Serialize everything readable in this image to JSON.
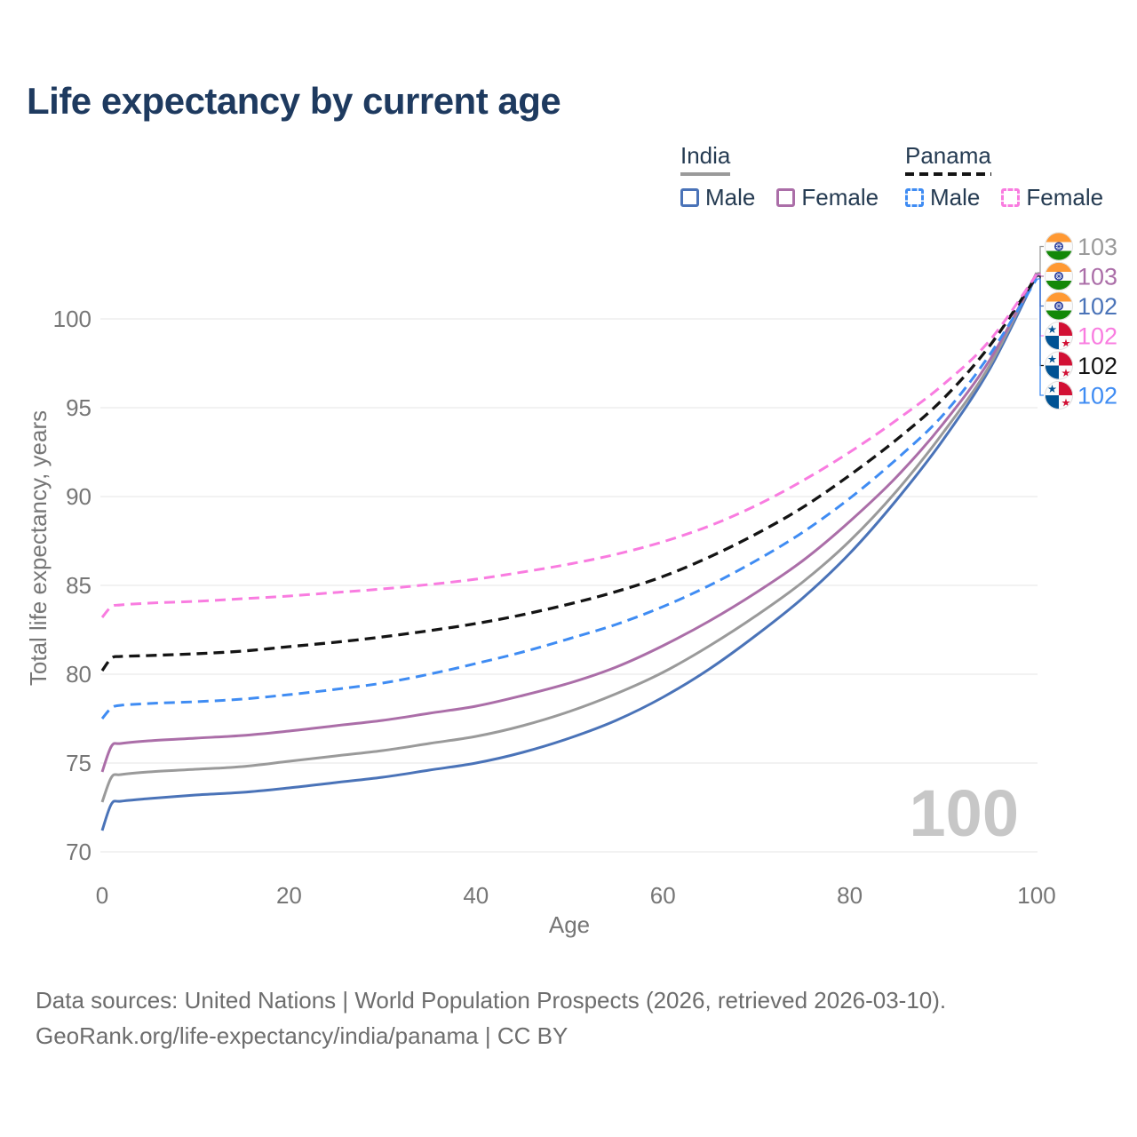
{
  "title": "Life expectancy by current age",
  "watermark": "100",
  "colors": {
    "title": "#1e3a5f",
    "legend_text": "#253b52",
    "axis": "#767676",
    "grid": "#eaeaea",
    "watermark": "#c7c7c7",
    "footer": "#6d6d6d",
    "india_male": "#4a73b8",
    "india_female": "#ab6ea8",
    "india_total": "#9a9a9a",
    "panama_male": "#3f8cf3",
    "panama_female": "#f97ce0",
    "panama_total": "#141414"
  },
  "legend": {
    "india": {
      "label": "India",
      "items": [
        {
          "label": "Male"
        },
        {
          "label": "Female"
        }
      ]
    },
    "panama": {
      "label": "Panama",
      "items": [
        {
          "label": "Male"
        },
        {
          "label": "Female"
        }
      ]
    }
  },
  "chart_data": {
    "type": "line",
    "title": "Life expectancy by current age",
    "xlabel": "Age",
    "ylabel": "Total life expectancy, years",
    "xlim": [
      0,
      100
    ],
    "ylim": [
      70,
      103
    ],
    "xticks": [
      0,
      20,
      40,
      60,
      80,
      100
    ],
    "yticks": [
      70,
      75,
      80,
      85,
      90,
      95,
      100
    ],
    "grid": true,
    "legend_position": "top-right",
    "x": [
      0,
      1,
      2,
      5,
      10,
      15,
      20,
      25,
      30,
      35,
      40,
      45,
      50,
      55,
      60,
      65,
      70,
      75,
      80,
      85,
      90,
      95,
      100
    ],
    "series": [
      {
        "id": "india_male",
        "name": "India Male",
        "country": "India",
        "sex": "Male",
        "color": "#4a73b8",
        "dashed": false,
        "label_slot": 2,
        "values": [
          71.2,
          72.7,
          72.85,
          73.0,
          73.2,
          73.35,
          73.6,
          73.9,
          74.2,
          74.6,
          75.0,
          75.6,
          76.4,
          77.4,
          78.7,
          80.3,
          82.2,
          84.3,
          86.8,
          89.8,
          93.2,
          97.2,
          102.45
        ]
      },
      {
        "id": "india_total",
        "name": "India Both sexes",
        "country": "India",
        "sex": "Both",
        "color": "#9a9a9a",
        "dashed": false,
        "label_slot": 0,
        "values": [
          72.8,
          74.2,
          74.35,
          74.5,
          74.65,
          74.8,
          75.1,
          75.4,
          75.7,
          76.1,
          76.5,
          77.1,
          77.9,
          78.9,
          80.1,
          81.6,
          83.3,
          85.2,
          87.5,
          90.3,
          93.6,
          97.4,
          102.6
        ]
      },
      {
        "id": "india_female",
        "name": "India Female",
        "country": "India",
        "sex": "Female",
        "color": "#ab6ea8",
        "dashed": false,
        "label_slot": 1,
        "values": [
          74.5,
          75.95,
          76.1,
          76.25,
          76.4,
          76.55,
          76.8,
          77.1,
          77.4,
          77.8,
          78.2,
          78.8,
          79.5,
          80.4,
          81.6,
          83.0,
          84.6,
          86.4,
          88.6,
          91.1,
          94.1,
          97.7,
          102.55
        ]
      },
      {
        "id": "panama_male",
        "name": "Panama Male",
        "country": "Panama",
        "sex": "Male",
        "color": "#3f8cf3",
        "dashed": true,
        "label_slot": 5,
        "values": [
          77.5,
          78.1,
          78.25,
          78.35,
          78.45,
          78.6,
          78.85,
          79.15,
          79.5,
          80.0,
          80.6,
          81.25,
          82.0,
          82.8,
          83.8,
          85.0,
          86.4,
          88.0,
          89.9,
          92.1,
          94.6,
          98.0,
          102.25
        ]
      },
      {
        "id": "panama_total",
        "name": "Panama Both sexes",
        "country": "Panama",
        "sex": "Both",
        "color": "#141414",
        "dashed": true,
        "label_slot": 4,
        "values": [
          80.2,
          80.9,
          81.0,
          81.05,
          81.15,
          81.3,
          81.55,
          81.8,
          82.1,
          82.45,
          82.85,
          83.35,
          83.95,
          84.65,
          85.5,
          86.6,
          87.9,
          89.4,
          91.2,
          93.2,
          95.5,
          98.5,
          102.4
        ]
      },
      {
        "id": "panama_female",
        "name": "Panama Female",
        "country": "Panama",
        "sex": "Female",
        "color": "#f97ce0",
        "dashed": true,
        "label_slot": 3,
        "values": [
          83.2,
          83.8,
          83.9,
          84.0,
          84.1,
          84.25,
          84.4,
          84.6,
          84.8,
          85.05,
          85.35,
          85.75,
          86.2,
          86.75,
          87.45,
          88.35,
          89.5,
          90.9,
          92.5,
          94.3,
          96.3,
          98.8,
          102.5
        ]
      }
    ],
    "end_labels": [
      {
        "series": "india_total",
        "flag": "india",
        "text": "103",
        "color": "#9a9a9a"
      },
      {
        "series": "india_female",
        "flag": "india",
        "text": "103",
        "color": "#ab6ea8"
      },
      {
        "series": "india_male",
        "flag": "india",
        "text": "102",
        "color": "#4a73b8"
      },
      {
        "series": "panama_female",
        "flag": "panama",
        "text": "102",
        "color": "#f97ce0"
      },
      {
        "series": "panama_total",
        "flag": "panama",
        "text": "102",
        "color": "#141414"
      },
      {
        "series": "panama_male",
        "flag": "panama",
        "text": "102",
        "color": "#3f8cf3"
      }
    ]
  },
  "footer": {
    "line1": "Data sources: United Nations | World Population Prospects (2026, retrieved 2026-03-10).",
    "line2": "GeoRank.org/life-expectancy/india/panama | CC BY"
  }
}
